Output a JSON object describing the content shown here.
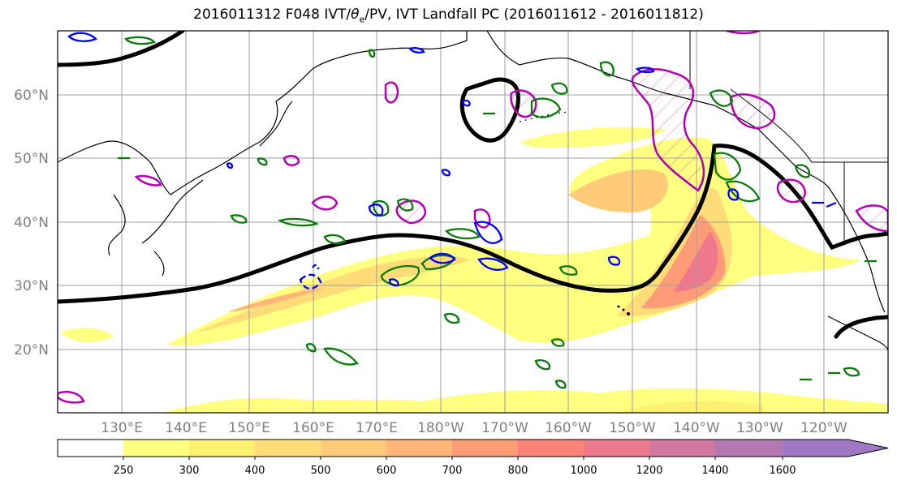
{
  "title": {
    "prefix": "2016011312 F048 IVT/",
    "theta": "θ",
    "theta_sub": "e",
    "suffix": "/PV, IVT Landfall PC (2016011612 - 2016011812)"
  },
  "map": {
    "lat_labels": [
      "60°N",
      "50°N",
      "40°N",
      "30°N",
      "20°N"
    ],
    "lon_labels": [
      "130°E",
      "140°E",
      "150°E",
      "160°E",
      "170°E",
      "180°W",
      "170°W",
      "160°W",
      "150°W",
      "140°W",
      "130°W",
      "120°W"
    ],
    "colors": {
      "land_outline": "#000000",
      "jet_contour": "#000000",
      "green_contour": "#0a7a0a",
      "blue_contour": "#0000ff",
      "magenta_contour": "#b400b4",
      "grid": "#9e9e9e"
    }
  },
  "colorbar": {
    "labels": [
      "250",
      "300",
      "400",
      "500",
      "600",
      "700",
      "800",
      "1000",
      "1200",
      "1400",
      "1600"
    ],
    "colors": [
      "#ffffff",
      "#ffff80",
      "#fff170",
      "#ffdc78",
      "#ffcb78",
      "#ffb478",
      "#ff9c78",
      "#ff8278",
      "#f0788c",
      "#d278a0",
      "#b478b4",
      "#a078c3"
    ]
  }
}
